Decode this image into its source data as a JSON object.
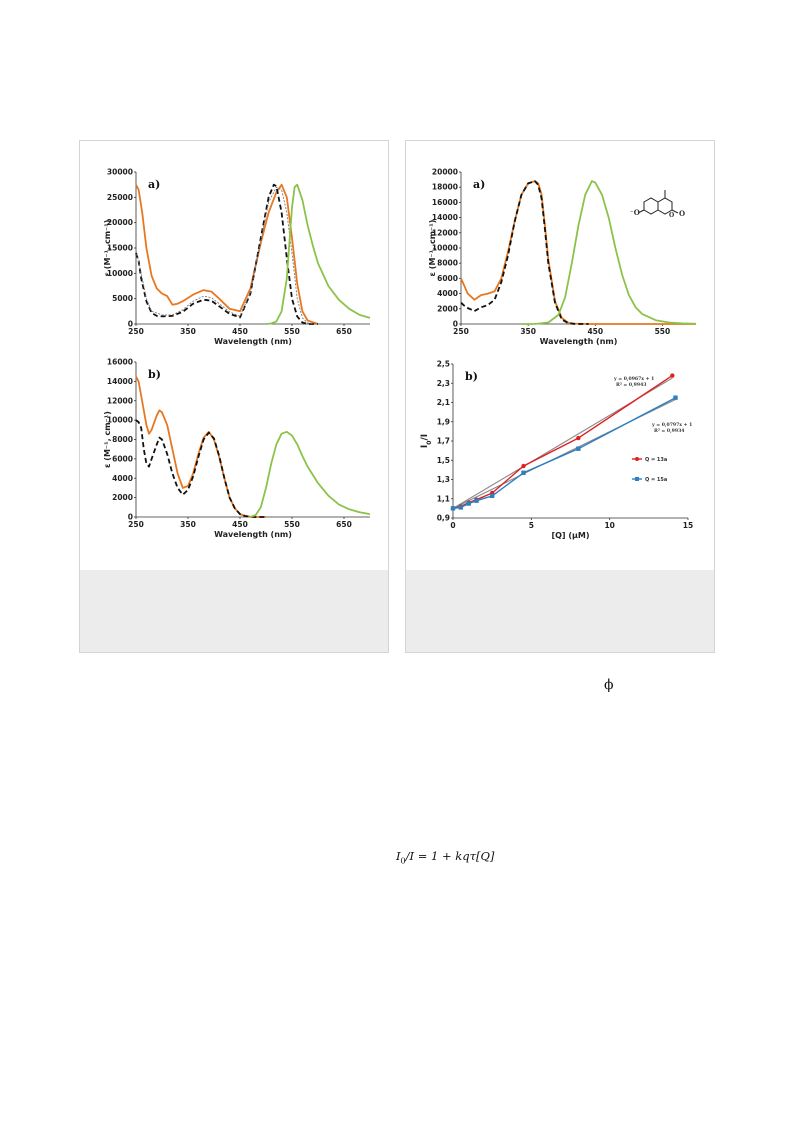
{
  "figure_left": {
    "panel_a": {
      "label": "a)",
      "ylabel": "ε (M⁻¹, cm⁻¹)",
      "xlabel": "Wavelength (nm)",
      "yticks": [
        "0",
        "5000",
        "10000",
        "15000",
        "20000",
        "25000",
        "30000"
      ],
      "xticks": [
        "250",
        "350",
        "450",
        "550",
        "650"
      ]
    },
    "panel_b": {
      "label": "b)",
      "ylabel": "ε (M⁻¹, cm⁻¹)",
      "xlabel": "Wavelength (nm)",
      "yticks": [
        "0",
        "2000",
        "4000",
        "6000",
        "8000",
        "10000",
        "12000",
        "14000",
        "16000"
      ],
      "xticks": [
        "250",
        "350",
        "450",
        "550",
        "650"
      ]
    }
  },
  "figure_right": {
    "panel_a": {
      "label": "a)",
      "ylabel": "ε (M⁻¹, cm⁻¹)",
      "xlabel": "Wavelength (nm)",
      "yticks": [
        "0",
        "2000",
        "4000",
        "6000",
        "8000",
        "10000",
        "12000",
        "14000",
        "16000",
        "18000",
        "20000"
      ],
      "xticks": [
        "250",
        "350",
        "450",
        "550"
      ],
      "structure_labels": {
        "o_minus": "⁻O",
        "o_carbonyl": "O",
        "o_ring": "O"
      }
    },
    "panel_b": {
      "label": "b)",
      "ylabel_main": "I",
      "ylabel_sub": "0",
      "ylabel_tail": "/I",
      "xlabel": "[Q] (μM)",
      "yticks": [
        "0,9",
        "1,1",
        "1,3",
        "1,5",
        "1,7",
        "1,9",
        "2,1",
        "2,3",
        "2,5"
      ],
      "xticks": [
        "0",
        "5",
        "10",
        "15"
      ],
      "fit1_eq": "y = 0,0967x + 1",
      "fit1_r2": "R² = 0,9943",
      "fit2_eq": "y = 0,0797x + 1",
      "fit2_r2": "R² = 0,9934",
      "legend": [
        "Q = 13a",
        "Q = 15a"
      ]
    }
  },
  "chart_data": [
    {
      "type": "line",
      "xlabel": "Wavelength (nm)",
      "ylabel": "ε (M⁻¹, cm⁻¹)",
      "xlim": [
        250,
        700
      ],
      "ylim": [
        0,
        30000
      ],
      "series": [
        {
          "color": "#e87722",
          "style": "solid",
          "x": [
            250,
            255,
            262,
            270,
            280,
            290,
            300,
            310,
            320,
            330,
            340,
            360,
            380,
            395,
            410,
            430,
            450,
            470,
            490,
            505,
            520,
            530,
            540,
            550,
            560,
            570,
            580,
            600
          ],
          "y": [
            27500,
            26500,
            22000,
            15000,
            9500,
            7000,
            6000,
            5500,
            3800,
            4000,
            4500,
            5800,
            6700,
            6400,
            5000,
            3000,
            2500,
            7000,
            16000,
            22000,
            26000,
            27500,
            25000,
            17000,
            8000,
            2500,
            700,
            0
          ]
        },
        {
          "color": "#111111",
          "style": "dashed",
          "x": [
            250,
            255,
            260,
            270,
            280,
            290,
            300,
            320,
            340,
            360,
            380,
            395,
            410,
            430,
            450,
            470,
            490,
            505,
            515,
            520,
            530,
            540,
            550,
            560,
            570,
            580,
            600
          ],
          "y": [
            14000,
            12500,
            9000,
            4500,
            2200,
            1600,
            1500,
            1600,
            2400,
            4000,
            4800,
            4600,
            3500,
            2000,
            1300,
            6000,
            17000,
            25000,
            27500,
            27200,
            22000,
            13000,
            5000,
            1500,
            300,
            0,
            0
          ]
        },
        {
          "color": "#777777",
          "style": "dotted",
          "x": [
            250,
            260,
            270,
            280,
            300,
            320,
            340,
            360,
            380,
            395,
            410,
            430,
            450,
            470,
            490,
            505,
            520,
            530,
            540,
            550,
            560,
            570,
            580,
            600
          ],
          "y": [
            14500,
            10000,
            5000,
            2500,
            1800,
            1800,
            2800,
            4500,
            5500,
            5200,
            4000,
            2400,
            1500,
            6200,
            16500,
            24000,
            27000,
            26500,
            22000,
            14000,
            5000,
            1200,
            200,
            0
          ]
        },
        {
          "color": "#8bc34a",
          "style": "solid",
          "x": [
            500,
            510,
            520,
            530,
            540,
            545,
            550,
            555,
            560,
            570,
            580,
            590,
            600,
            620,
            640,
            660,
            680,
            700
          ],
          "y": [
            0,
            100,
            500,
            2500,
            9000,
            16000,
            23000,
            27000,
            27500,
            24500,
            19500,
            15500,
            12000,
            7500,
            4800,
            3000,
            1800,
            1200
          ]
        }
      ]
    },
    {
      "type": "line",
      "xlabel": "Wavelength (nm)",
      "ylabel": "ε (M⁻¹, cm⁻¹)",
      "xlim": [
        250,
        700
      ],
      "ylim": [
        0,
        16000
      ],
      "series": [
        {
          "color": "#e87722",
          "style": "solid",
          "x": [
            250,
            255,
            260,
            265,
            270,
            275,
            280,
            290,
            295,
            300,
            310,
            320,
            330,
            340,
            350,
            360,
            370,
            380,
            390,
            400,
            410,
            420,
            430,
            440,
            450,
            460,
            470,
            480,
            500
          ],
          "y": [
            14500,
            14000,
            12500,
            11000,
            9500,
            8600,
            9000,
            10500,
            11000,
            10800,
            9500,
            7000,
            4500,
            3000,
            3200,
            4500,
            6500,
            8200,
            8800,
            8000,
            6200,
            4000,
            2000,
            900,
            300,
            100,
            20,
            0,
            0
          ]
        },
        {
          "color": "#111111",
          "style": "dashed",
          "x": [
            250,
            255,
            260,
            265,
            270,
            275,
            280,
            290,
            295,
            300,
            310,
            320,
            330,
            340,
            350,
            360,
            370,
            380,
            390,
            400,
            410,
            420,
            430,
            440,
            450,
            460,
            470,
            480,
            500
          ],
          "y": [
            10000,
            9800,
            9200,
            7000,
            5500,
            5200,
            6000,
            7500,
            8200,
            8000,
            6500,
            4500,
            3000,
            2300,
            2800,
            4200,
            6200,
            8000,
            8700,
            8100,
            6300,
            4000,
            2000,
            900,
            300,
            100,
            20,
            0,
            0
          ]
        },
        {
          "color": "#8bc34a",
          "style": "solid",
          "x": [
            470,
            480,
            490,
            500,
            510,
            520,
            530,
            540,
            550,
            560,
            570,
            580,
            600,
            620,
            640,
            660,
            680,
            700
          ],
          "y": [
            0,
            200,
            1000,
            3000,
            5500,
            7500,
            8600,
            8800,
            8400,
            7500,
            6300,
            5200,
            3500,
            2200,
            1300,
            800,
            500,
            300
          ]
        }
      ]
    },
    {
      "type": "line",
      "xlabel": "Wavelength (nm)",
      "ylabel": "ε (M⁻¹, cm⁻¹)",
      "xlim": [
        250,
        600
      ],
      "ylim": [
        0,
        20000
      ],
      "series": [
        {
          "color": "#e87722",
          "style": "solid",
          "x": [
            250,
            255,
            260,
            270,
            280,
            290,
            300,
            310,
            320,
            330,
            340,
            350,
            360,
            365,
            370,
            375,
            380,
            390,
            400,
            410,
            420,
            440,
            460,
            500,
            600
          ],
          "y": [
            6000,
            5000,
            4000,
            3200,
            3800,
            4000,
            4300,
            6000,
            9500,
            13500,
            17000,
            18500,
            18800,
            18500,
            17000,
            13000,
            8500,
            3000,
            800,
            150,
            50,
            0,
            0,
            0,
            0
          ]
        },
        {
          "color": "#111111",
          "style": "dashed",
          "x": [
            250,
            255,
            260,
            270,
            280,
            290,
            300,
            310,
            320,
            330,
            340,
            350,
            360,
            365,
            370,
            375,
            380,
            390,
            400,
            410,
            420,
            440
          ],
          "y": [
            2800,
            2400,
            2100,
            1700,
            2200,
            2500,
            3200,
            5500,
            9000,
            13500,
            17000,
            18500,
            18800,
            18300,
            16500,
            12500,
            8000,
            2800,
            600,
            100,
            0,
            0
          ]
        },
        {
          "color": "#8bc34a",
          "style": "solid",
          "x": [
            340,
            360,
            380,
            395,
            405,
            415,
            425,
            435,
            445,
            450,
            460,
            470,
            480,
            490,
            500,
            510,
            520,
            540,
            560,
            580,
            600
          ],
          "y": [
            0,
            0,
            200,
            1200,
            3500,
            8000,
            13000,
            17000,
            18800,
            18600,
            17000,
            14000,
            10000,
            6500,
            3800,
            2200,
            1300,
            500,
            200,
            80,
            20
          ]
        }
      ]
    },
    {
      "type": "scatter",
      "xlabel": "[Q] (μM)",
      "ylabel": "I0/I",
      "xlim": [
        0,
        15
      ],
      "ylim": [
        0.9,
        2.5
      ],
      "series": [
        {
          "name": "Q = 13a",
          "color": "#e02020",
          "x": [
            0,
            0.5,
            1,
            1.5,
            2.5,
            4.5,
            8,
            14
          ],
          "y": [
            1.0,
            1.02,
            1.06,
            1.09,
            1.16,
            1.44,
            1.73,
            2.38
          ]
        },
        {
          "name": "Q = 15a",
          "color": "#2f7fc0",
          "x": [
            0,
            0.5,
            1,
            1.5,
            2.5,
            4.5,
            8,
            14.2
          ],
          "y": [
            1.0,
            1.01,
            1.05,
            1.08,
            1.13,
            1.37,
            1.62,
            2.15
          ]
        }
      ],
      "fits": [
        {
          "slope": 0.0967,
          "intercept": 1,
          "r2": 0.9943
        },
        {
          "slope": 0.0797,
          "intercept": 1,
          "r2": 0.9934
        }
      ]
    }
  ],
  "text": {
    "phi_symbol": "ϕ",
    "equation_I": "I",
    "equation_sub": "0",
    "equation_rest": "/I = 1 + kqτ[Q]"
  }
}
